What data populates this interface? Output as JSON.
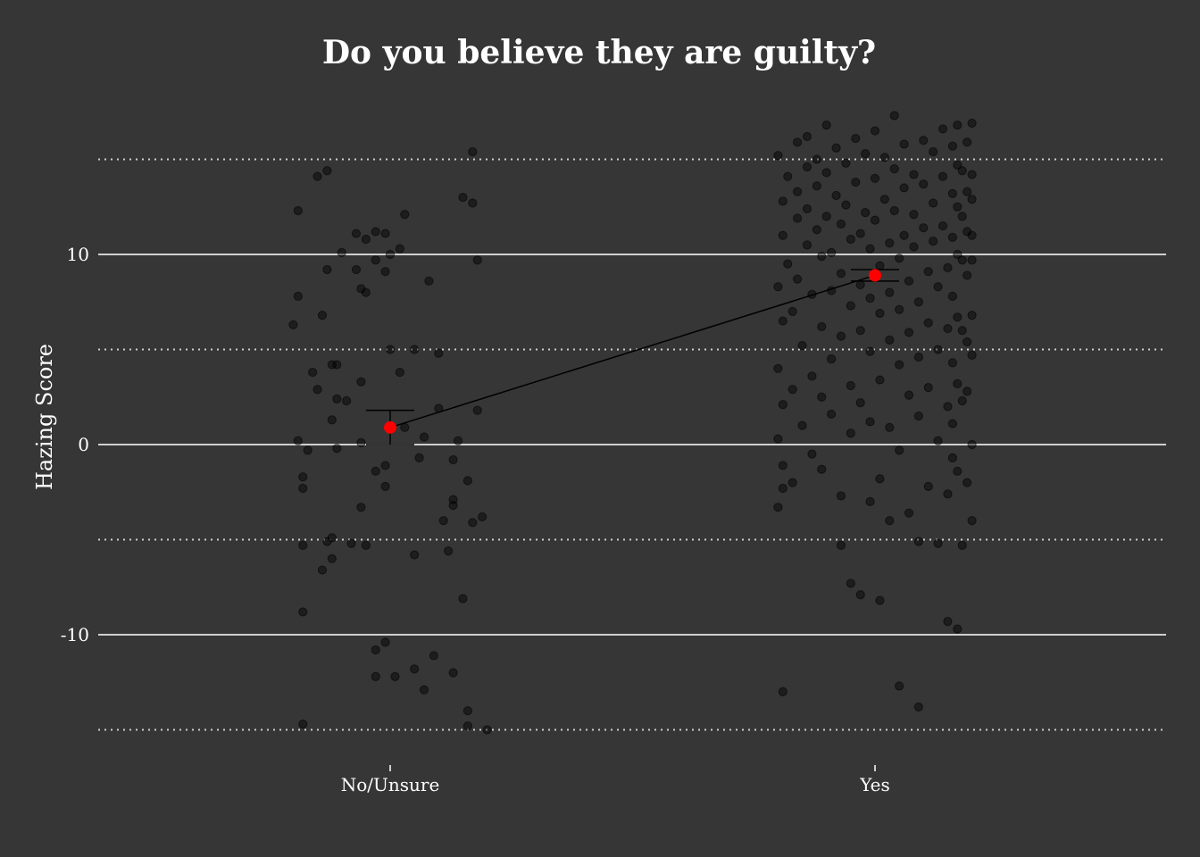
{
  "chart_data": {
    "type": "scatter",
    "title": "Do you believe they are guilty?",
    "xlabel": "",
    "ylabel": "Hazing Score",
    "categories": [
      "No/Unsure",
      "Yes"
    ],
    "ylim": [
      -15.5,
      18.5
    ],
    "yticks": [
      -10,
      0,
      10
    ],
    "minor_gridlines": [
      -15,
      -5,
      5,
      15
    ],
    "grid": "horizontal",
    "colors": {
      "background": "#363636",
      "points": "#000000",
      "mean": "#ff0000",
      "errorbar": "#000000",
      "grid": "#cfcfcf"
    },
    "summary": [
      {
        "category": "No/Unsure",
        "mean": 0.9,
        "ci": [
          0.0,
          1.8
        ]
      },
      {
        "category": "Yes",
        "mean": 8.9,
        "ci": [
          8.6,
          9.2
        ]
      }
    ],
    "series": [
      {
        "category": "No/Unsure",
        "points": [
          [
            -0.19,
            12.3
          ],
          [
            -0.19,
            7.8
          ],
          [
            -0.2,
            6.3
          ],
          [
            -0.15,
            14.1
          ],
          [
            -0.13,
            14.4
          ],
          [
            -0.13,
            9.2
          ],
          [
            -0.14,
            6.8
          ],
          [
            -0.11,
            4.2
          ],
          [
            -0.11,
            2.4
          ],
          [
            -0.1,
            10.1
          ],
          [
            -0.07,
            11.1
          ],
          [
            -0.07,
            9.2
          ],
          [
            -0.06,
            3.3
          ],
          [
            -0.06,
            8.2
          ],
          [
            -0.05,
            8.0
          ],
          [
            -0.05,
            10.8
          ],
          [
            -0.03,
            11.2
          ],
          [
            -0.03,
            9.7
          ],
          [
            -0.01,
            11.1
          ],
          [
            -0.01,
            9.1
          ],
          [
            0.0,
            10.0
          ],
          [
            0.02,
            10.3
          ],
          [
            0.03,
            12.1
          ],
          [
            0.0,
            5.0
          ],
          [
            0.02,
            3.8
          ],
          [
            0.08,
            8.6
          ],
          [
            0.05,
            5.0
          ],
          [
            0.17,
            15.4
          ],
          [
            0.15,
            13.0
          ],
          [
            0.17,
            12.7
          ],
          [
            0.18,
            9.7
          ],
          [
            -0.16,
            3.8
          ],
          [
            -0.15,
            2.9
          ],
          [
            -0.12,
            4.2
          ],
          [
            -0.12,
            1.3
          ],
          [
            -0.11,
            -0.2
          ],
          [
            -0.09,
            2.3
          ],
          [
            -0.19,
            0.2
          ],
          [
            -0.17,
            -0.3
          ],
          [
            -0.18,
            -1.7
          ],
          [
            -0.18,
            -2.3
          ],
          [
            -0.06,
            0.1
          ],
          [
            -0.03,
            -1.4
          ],
          [
            -0.01,
            -2.2
          ],
          [
            -0.01,
            -1.1
          ],
          [
            0.03,
            0.9
          ],
          [
            0.05,
            -5.8
          ],
          [
            0.06,
            -0.7
          ],
          [
            0.07,
            0.4
          ],
          [
            0.1,
            1.9
          ],
          [
            0.1,
            4.8
          ],
          [
            0.11,
            -4.0
          ],
          [
            0.12,
            -5.6
          ],
          [
            0.13,
            -0.8
          ],
          [
            0.13,
            -2.9
          ],
          [
            0.13,
            -3.2
          ],
          [
            0.14,
            0.2
          ],
          [
            0.16,
            -1.9
          ],
          [
            0.17,
            -4.1
          ],
          [
            0.18,
            1.8
          ],
          [
            0.19,
            -3.8
          ],
          [
            -0.18,
            -5.3
          ],
          [
            -0.14,
            -6.6
          ],
          [
            -0.13,
            -5.1
          ],
          [
            -0.12,
            -6.0
          ],
          [
            -0.12,
            -4.9
          ],
          [
            -0.08,
            -5.2
          ],
          [
            -0.06,
            -3.3
          ],
          [
            -0.05,
            -5.3
          ],
          [
            -0.03,
            -10.8
          ],
          [
            -0.03,
            -12.2
          ],
          [
            -0.01,
            -10.4
          ],
          [
            0.01,
            -12.2
          ],
          [
            0.05,
            -11.8
          ],
          [
            0.07,
            -12.9
          ],
          [
            0.09,
            -11.1
          ],
          [
            0.13,
            -12.0
          ],
          [
            0.15,
            -8.1
          ],
          [
            -0.18,
            -8.8
          ],
          [
            -0.18,
            -14.7
          ],
          [
            0.16,
            -14.0
          ],
          [
            0.16,
            -14.8
          ],
          [
            0.2,
            -15.0
          ]
        ]
      },
      {
        "category": "Yes",
        "points": [
          [
            -0.2,
            15.2
          ],
          [
            -0.19,
            12.8
          ],
          [
            -0.19,
            11.0
          ],
          [
            -0.2,
            8.3
          ],
          [
            -0.19,
            6.5
          ],
          [
            -0.2,
            4.0
          ],
          [
            -0.19,
            2.1
          ],
          [
            -0.2,
            0.3
          ],
          [
            -0.19,
            -1.1
          ],
          [
            -0.19,
            -2.3
          ],
          [
            -0.2,
            -3.3
          ],
          [
            -0.19,
            -13.0
          ],
          [
            -0.18,
            14.1
          ],
          [
            -0.18,
            9.5
          ],
          [
            -0.17,
            7.0
          ],
          [
            -0.17,
            2.9
          ],
          [
            -0.17,
            -2.0
          ],
          [
            -0.16,
            15.9
          ],
          [
            -0.16,
            13.3
          ],
          [
            -0.16,
            11.9
          ],
          [
            -0.16,
            8.7
          ],
          [
            -0.15,
            5.2
          ],
          [
            -0.15,
            1.0
          ],
          [
            -0.14,
            16.2
          ],
          [
            -0.14,
            14.6
          ],
          [
            -0.14,
            12.4
          ],
          [
            -0.14,
            10.5
          ],
          [
            -0.13,
            7.9
          ],
          [
            -0.13,
            3.6
          ],
          [
            -0.13,
            -0.5
          ],
          [
            -0.12,
            15.0
          ],
          [
            -0.12,
            13.6
          ],
          [
            -0.12,
            11.3
          ],
          [
            -0.11,
            9.9
          ],
          [
            -0.11,
            6.2
          ],
          [
            -0.11,
            2.5
          ],
          [
            -0.11,
            -1.3
          ],
          [
            -0.1,
            16.8
          ],
          [
            -0.1,
            14.3
          ],
          [
            -0.1,
            12.0
          ],
          [
            -0.09,
            10.1
          ],
          [
            -0.09,
            8.1
          ],
          [
            -0.09,
            4.5
          ],
          [
            -0.09,
            1.6
          ],
          [
            -0.08,
            15.6
          ],
          [
            -0.08,
            13.1
          ],
          [
            -0.07,
            11.6
          ],
          [
            -0.07,
            9.0
          ],
          [
            -0.07,
            5.7
          ],
          [
            -0.07,
            -2.7
          ],
          [
            -0.07,
            -5.3
          ],
          [
            -0.06,
            14.8
          ],
          [
            -0.06,
            12.6
          ],
          [
            -0.05,
            10.8
          ],
          [
            -0.05,
            7.3
          ],
          [
            -0.05,
            3.1
          ],
          [
            -0.05,
            0.6
          ],
          [
            -0.05,
            -7.3
          ],
          [
            -0.04,
            16.1
          ],
          [
            -0.04,
            13.8
          ],
          [
            -0.03,
            11.1
          ],
          [
            -0.03,
            8.4
          ],
          [
            -0.03,
            6.0
          ],
          [
            -0.03,
            2.2
          ],
          [
            -0.03,
            -7.9
          ],
          [
            -0.02,
            15.3
          ],
          [
            -0.02,
            12.2
          ],
          [
            -0.01,
            10.3
          ],
          [
            -0.01,
            7.7
          ],
          [
            -0.01,
            4.9
          ],
          [
            -0.01,
            1.2
          ],
          [
            -0.01,
            -3.0
          ],
          [
            0.0,
            16.5
          ],
          [
            0.0,
            14.0
          ],
          [
            0.0,
            11.8
          ],
          [
            0.01,
            9.4
          ],
          [
            0.01,
            6.9
          ],
          [
            0.01,
            3.4
          ],
          [
            0.01,
            -1.8
          ],
          [
            0.01,
            -8.2
          ],
          [
            0.02,
            15.1
          ],
          [
            0.02,
            12.9
          ],
          [
            0.03,
            10.6
          ],
          [
            0.03,
            8.0
          ],
          [
            0.03,
            5.5
          ],
          [
            0.03,
            0.9
          ],
          [
            0.03,
            -4.0
          ],
          [
            0.04,
            17.3
          ],
          [
            0.04,
            14.5
          ],
          [
            0.04,
            12.3
          ],
          [
            0.05,
            9.8
          ],
          [
            0.05,
            7.1
          ],
          [
            0.05,
            4.2
          ],
          [
            0.05,
            -0.3
          ],
          [
            0.05,
            -12.7
          ],
          [
            0.06,
            15.8
          ],
          [
            0.06,
            13.5
          ],
          [
            0.06,
            11.0
          ],
          [
            0.07,
            8.6
          ],
          [
            0.07,
            5.9
          ],
          [
            0.07,
            2.6
          ],
          [
            0.07,
            -3.6
          ],
          [
            0.08,
            14.2
          ],
          [
            0.08,
            12.1
          ],
          [
            0.08,
            10.4
          ],
          [
            0.09,
            7.5
          ],
          [
            0.09,
            4.6
          ],
          [
            0.09,
            1.5
          ],
          [
            0.09,
            -5.1
          ],
          [
            0.09,
            -13.8
          ],
          [
            0.1,
            16.0
          ],
          [
            0.1,
            13.7
          ],
          [
            0.1,
            11.4
          ],
          [
            0.11,
            9.1
          ],
          [
            0.11,
            6.4
          ],
          [
            0.11,
            3.0
          ],
          [
            0.11,
            -2.2
          ],
          [
            0.12,
            15.4
          ],
          [
            0.12,
            12.7
          ],
          [
            0.12,
            10.7
          ],
          [
            0.13,
            8.3
          ],
          [
            0.13,
            5.0
          ],
          [
            0.13,
            0.2
          ],
          [
            0.13,
            -5.2
          ],
          [
            0.14,
            16.6
          ],
          [
            0.14,
            14.1
          ],
          [
            0.14,
            11.5
          ],
          [
            0.15,
            9.3
          ],
          [
            0.15,
            6.1
          ],
          [
            0.15,
            2.0
          ],
          [
            0.15,
            -2.6
          ],
          [
            0.15,
            -9.3
          ],
          [
            0.16,
            15.7
          ],
          [
            0.16,
            13.2
          ],
          [
            0.16,
            10.9
          ],
          [
            0.16,
            7.8
          ],
          [
            0.16,
            4.3
          ],
          [
            0.16,
            1.1
          ],
          [
            0.16,
            -0.7
          ],
          [
            0.17,
            16.8
          ],
          [
            0.17,
            14.7
          ],
          [
            0.17,
            12.5
          ],
          [
            0.17,
            10.0
          ],
          [
            0.17,
            6.7
          ],
          [
            0.17,
            3.2
          ],
          [
            0.17,
            -1.4
          ],
          [
            0.17,
            -9.7
          ],
          [
            0.18,
            14.4
          ],
          [
            0.18,
            12.0
          ],
          [
            0.18,
            9.7
          ],
          [
            0.18,
            6.0
          ],
          [
            0.18,
            2.3
          ],
          [
            0.18,
            -5.3
          ],
          [
            0.19,
            15.9
          ],
          [
            0.19,
            13.3
          ],
          [
            0.19,
            11.2
          ],
          [
            0.19,
            8.9
          ],
          [
            0.19,
            5.4
          ],
          [
            0.19,
            2.8
          ],
          [
            0.19,
            -2.0
          ],
          [
            0.2,
            16.9
          ],
          [
            0.2,
            14.2
          ],
          [
            0.2,
            12.9
          ],
          [
            0.2,
            11.0
          ],
          [
            0.2,
            9.7
          ],
          [
            0.2,
            6.8
          ],
          [
            0.2,
            4.7
          ],
          [
            0.2,
            0.0
          ],
          [
            0.2,
            -4.0
          ]
        ]
      }
    ]
  }
}
